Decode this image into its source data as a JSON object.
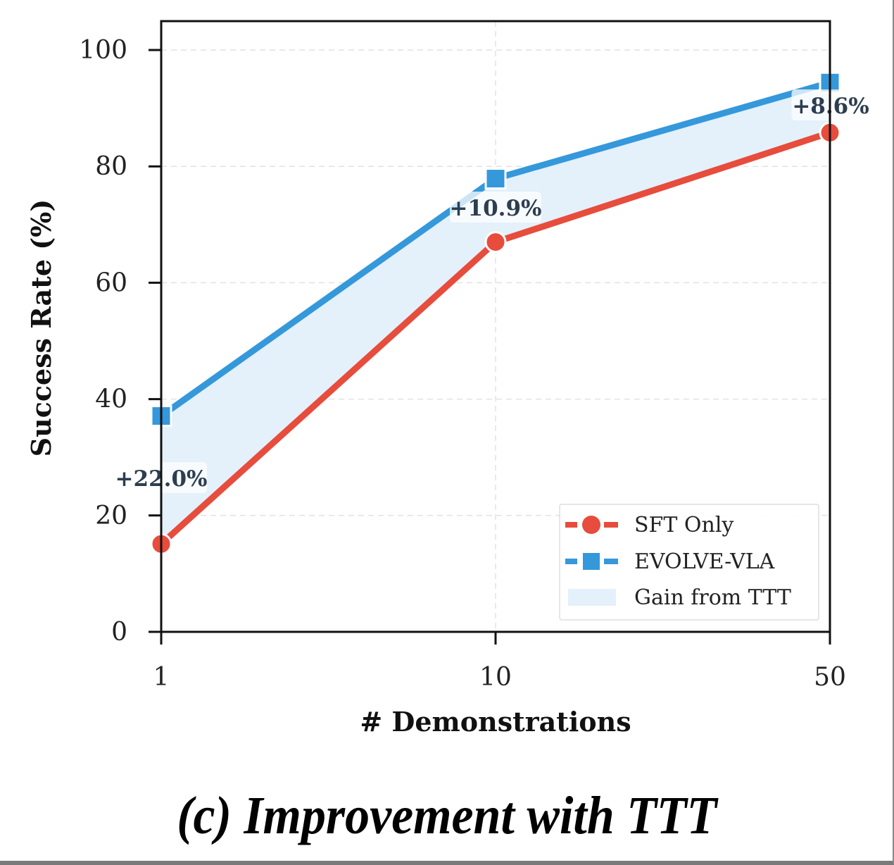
{
  "caption": "(c) Improvement with TTT",
  "chart_data": {
    "type": "line",
    "title": "",
    "xlabel": "# Demonstrations",
    "ylabel": "Success Rate (%)",
    "categories": [
      "1",
      "10",
      "50"
    ],
    "ylim": [
      0,
      105
    ],
    "yticks": [
      0,
      20,
      40,
      60,
      80,
      100
    ],
    "grid": true,
    "legend_position": "lower-right",
    "series": [
      {
        "name": "SFT Only",
        "marker": "circle",
        "color": "#e74c3c",
        "values": [
          15.1,
          67.0,
          85.8
        ]
      },
      {
        "name": "EVOLVE-VLA",
        "marker": "square",
        "color": "#3498db",
        "values": [
          37.1,
          77.9,
          94.4
        ]
      }
    ],
    "fill_between": {
      "name": "Gain from TTT",
      "color": "#e4f0fa",
      "between": [
        "SFT Only",
        "EVOLVE-VLA"
      ]
    },
    "annotations": [
      "+22.0%",
      "+10.9%",
      "+8.6%"
    ]
  }
}
